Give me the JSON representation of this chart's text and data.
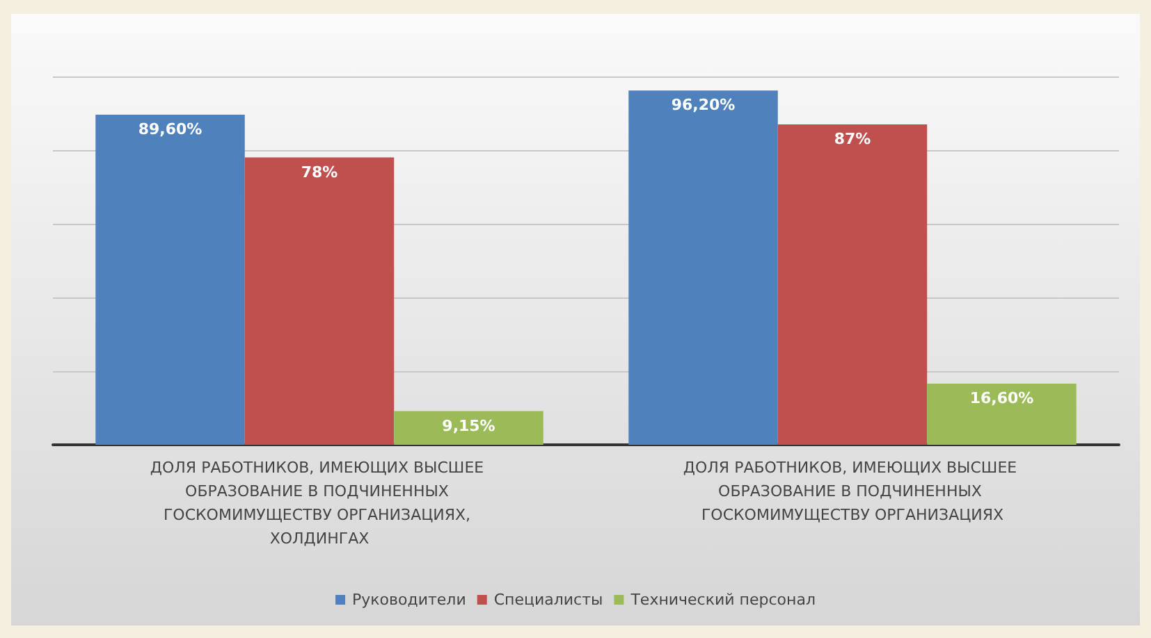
{
  "chart_data": {
    "type": "bar",
    "categories": [
      "ДОЛЯ РАБОТНИКОВ, ИМЕЮЩИХ ВЫСШЕЕ ОБРАЗОВАНИЕ В ПОДЧИНЕННЫХ ГОСКОМИМУЩЕСТВУ ОРГАНИЗАЦИЯХ, ХОЛДИНГАХ",
      "ДОЛЯ РАБОТНИКОВ, ИМЕЮЩИХ ВЫСШЕЕ ОБРАЗОВАНИЕ В ПОДЧИНЕННЫХ ГОСКОМИМУЩЕСТВУ ОРГАНИЗАЦИЯХ"
    ],
    "series": [
      {
        "name": "Руководители",
        "color": "#4f81bd",
        "values": [
          89.6,
          96.2
        ],
        "value_labels": [
          "89,60%",
          "96,20%"
        ]
      },
      {
        "name": "Специалисты",
        "color": "#c0504d",
        "values": [
          78,
          87
        ],
        "value_labels": [
          "78%",
          "87%"
        ]
      },
      {
        "name": "Технический персонал",
        "color": "#9bbb59",
        "values": [
          9.15,
          16.6
        ],
        "value_labels": [
          "9,15%",
          "16,60%"
        ]
      }
    ],
    "ylim": [
      0,
      100
    ],
    "yticks": [
      {
        "value": 0,
        "label": null
      },
      {
        "value": 20,
        "label": null
      },
      {
        "value": 40,
        "label": null
      },
      {
        "value": 60,
        "label": null
      },
      {
        "value": 80,
        "label": null
      },
      {
        "value": 100,
        "label": null
      }
    ],
    "grid": "y",
    "legend": "bottom",
    "tick_labels": "x"
  }
}
